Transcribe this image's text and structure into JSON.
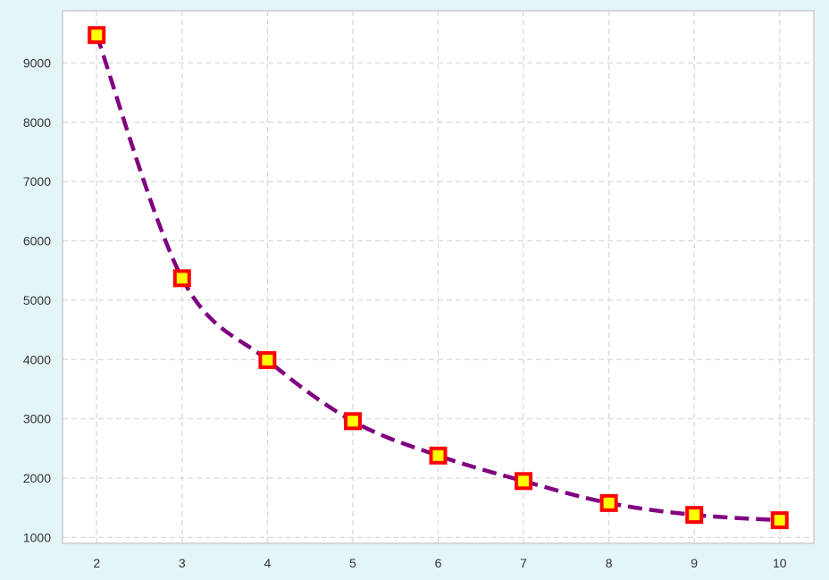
{
  "colors": {
    "figure_background": "#e4f5f8",
    "plot_background": "#ffffff",
    "axes_border": "#cccccc",
    "grid": "#d9d9d9",
    "line": "#800080",
    "marker_edge": "#ff0000",
    "marker_face": "#ffff00"
  },
  "chart_data": {
    "type": "line",
    "title": "",
    "xlabel": "",
    "ylabel": "",
    "x": [
      2,
      3,
      4,
      5,
      6,
      7,
      8,
      9,
      10
    ],
    "series": [
      {
        "values": [
          9470,
          5370,
          3990,
          2960,
          2380,
          1950,
          1580,
          1380,
          1290
        ]
      }
    ],
    "xlim": [
      1.6,
      10.4
    ],
    "ylim": [
      900,
      9880
    ],
    "xticks": [
      "2",
      "3",
      "4",
      "5",
      "6",
      "7",
      "8",
      "9",
      "10"
    ],
    "yticks": [
      "1000",
      "2000",
      "3000",
      "4000",
      "5000",
      "6000",
      "7000",
      "8000",
      "9000"
    ],
    "grid": true,
    "line_style": "dashed",
    "marker": "square"
  }
}
